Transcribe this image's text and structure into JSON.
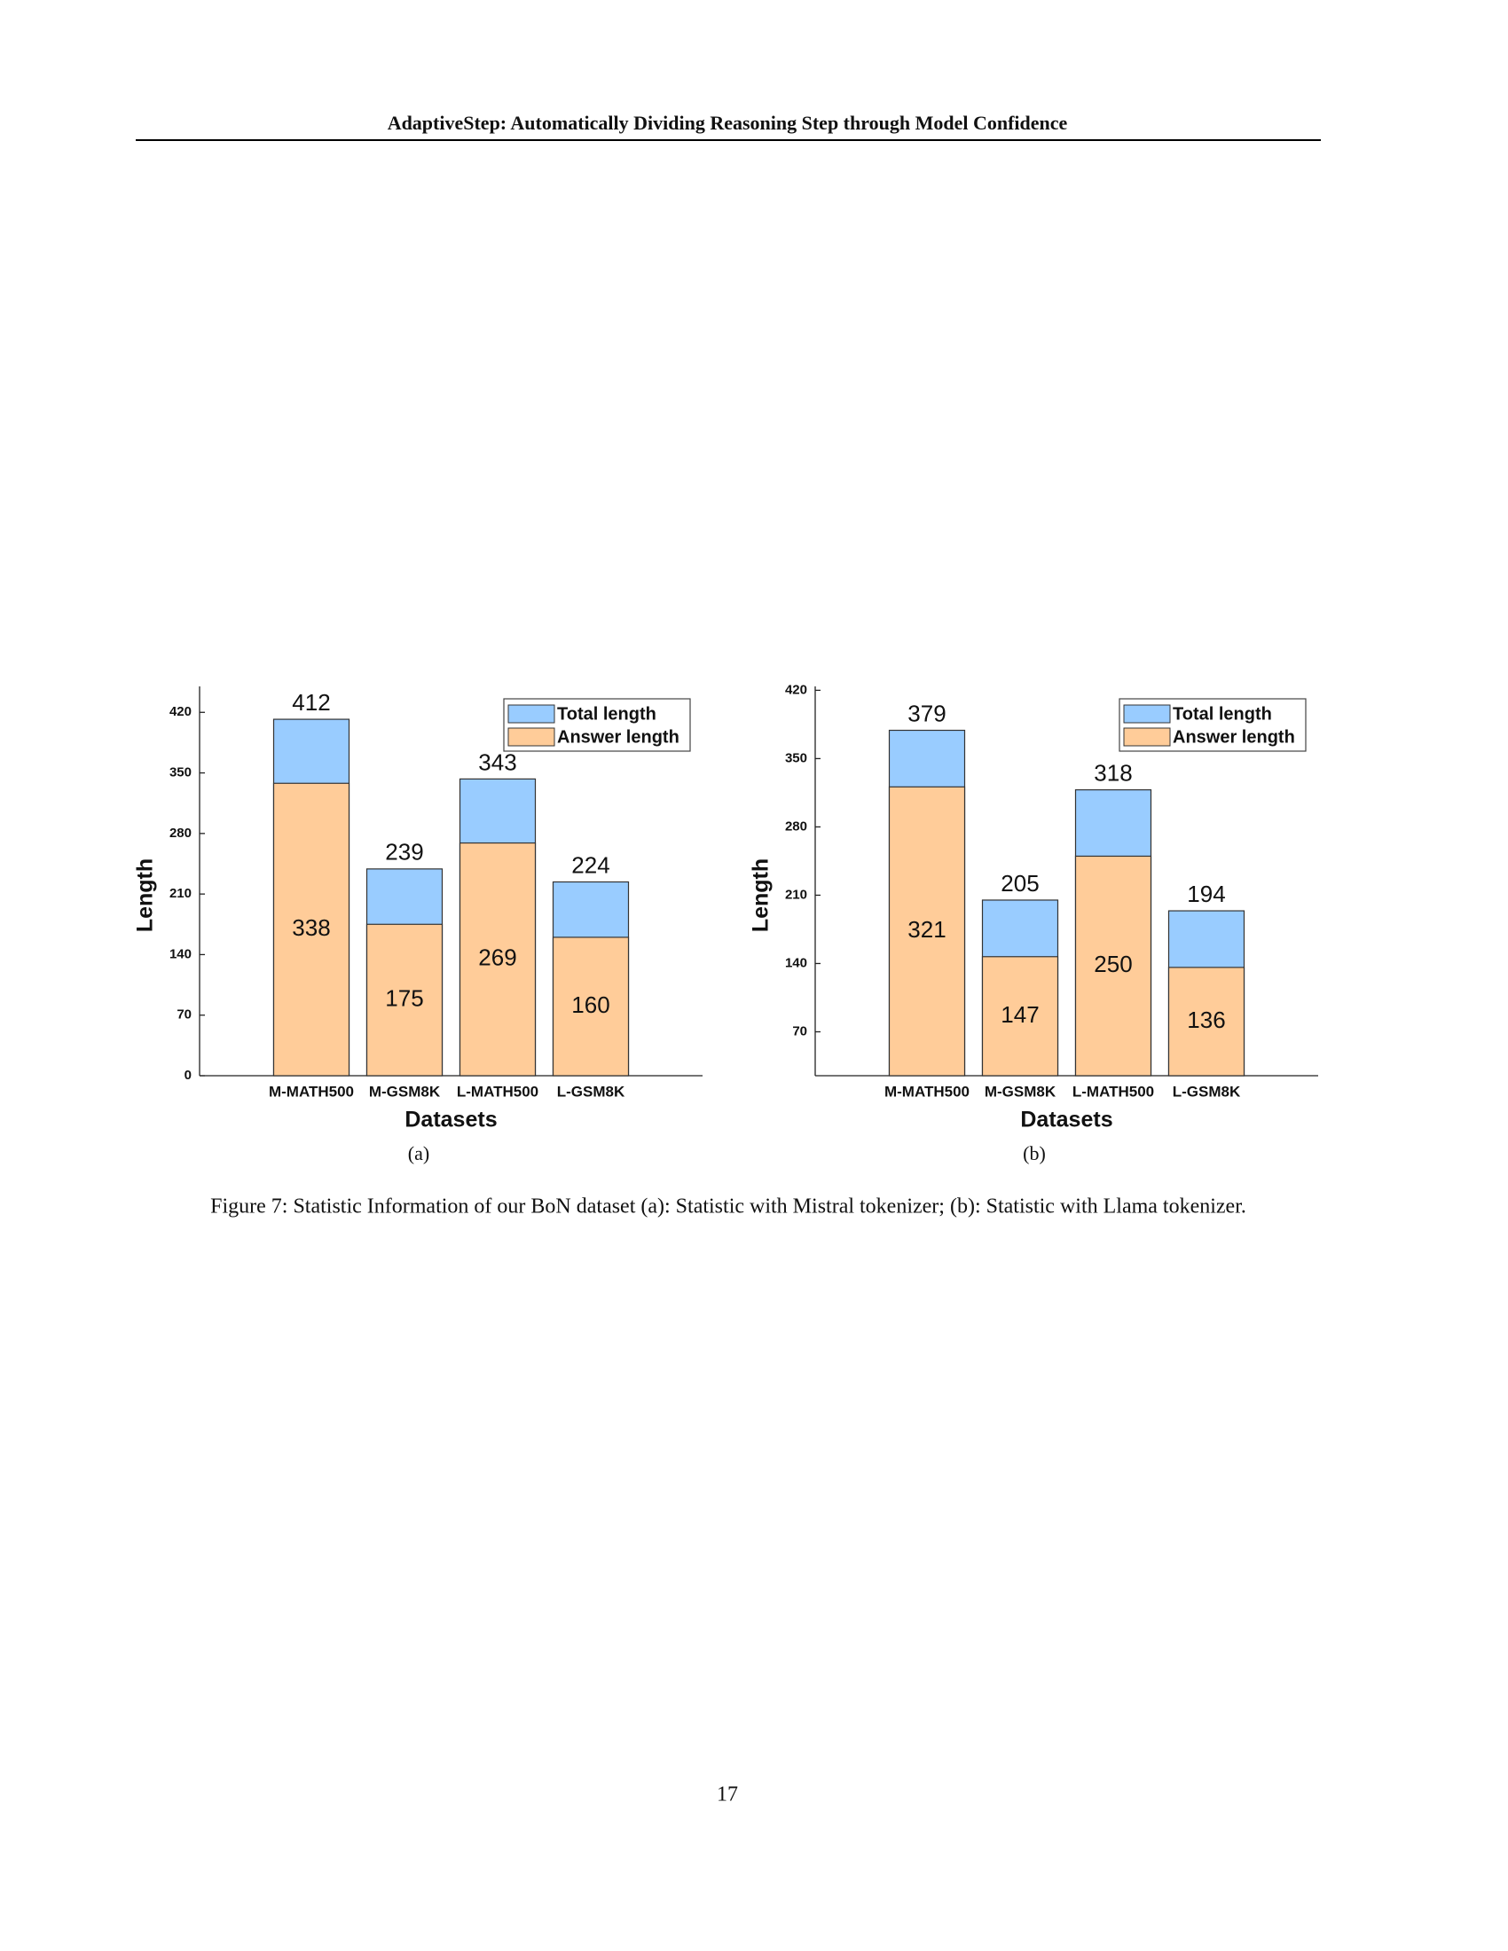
{
  "header": {
    "title": "AdaptiveStep: Automatically Dividing Reasoning Step through Model Confidence"
  },
  "chart_data": [
    {
      "type": "bar",
      "overlap": true,
      "subcaption": "(a)",
      "x_label": "Datasets",
      "y_label": "Length",
      "categories": [
        "M-MATH500",
        "M-GSM8K",
        "L-MATH500",
        "L-GSM8K"
      ],
      "series": [
        {
          "name": "Total length",
          "color": "#99ccff",
          "values": [
            412,
            239,
            343,
            224
          ]
        },
        {
          "name": "Answer length",
          "color": "#ffcc99",
          "values": [
            338,
            175,
            269,
            160
          ]
        }
      ],
      "ylim": [
        0,
        450
      ],
      "yticks": [
        0,
        70,
        140,
        210,
        280,
        350,
        420
      ],
      "grid": false,
      "legend": "upper right"
    },
    {
      "type": "bar",
      "overlap": true,
      "subcaption": "(b)",
      "x_label": "Datasets",
      "y_label": "Length",
      "categories": [
        "M-MATH500",
        "M-GSM8K",
        "L-MATH500",
        "L-GSM8K"
      ],
      "series": [
        {
          "name": "Total length",
          "color": "#99ccff",
          "values": [
            379,
            205,
            318,
            194
          ]
        },
        {
          "name": "Answer length",
          "color": "#ffcc99",
          "values": [
            321,
            147,
            250,
            136
          ]
        }
      ],
      "ylim": [
        25,
        424
      ],
      "yticks": [
        70,
        140,
        210,
        280,
        350,
        420
      ],
      "grid": false,
      "legend": "upper right"
    }
  ],
  "caption": "Figure 7: Statistic Information of our BoN dataset (a): Statistic with Mistral tokenizer; (b): Statistic with Llama tokenizer.",
  "page_number": "17"
}
